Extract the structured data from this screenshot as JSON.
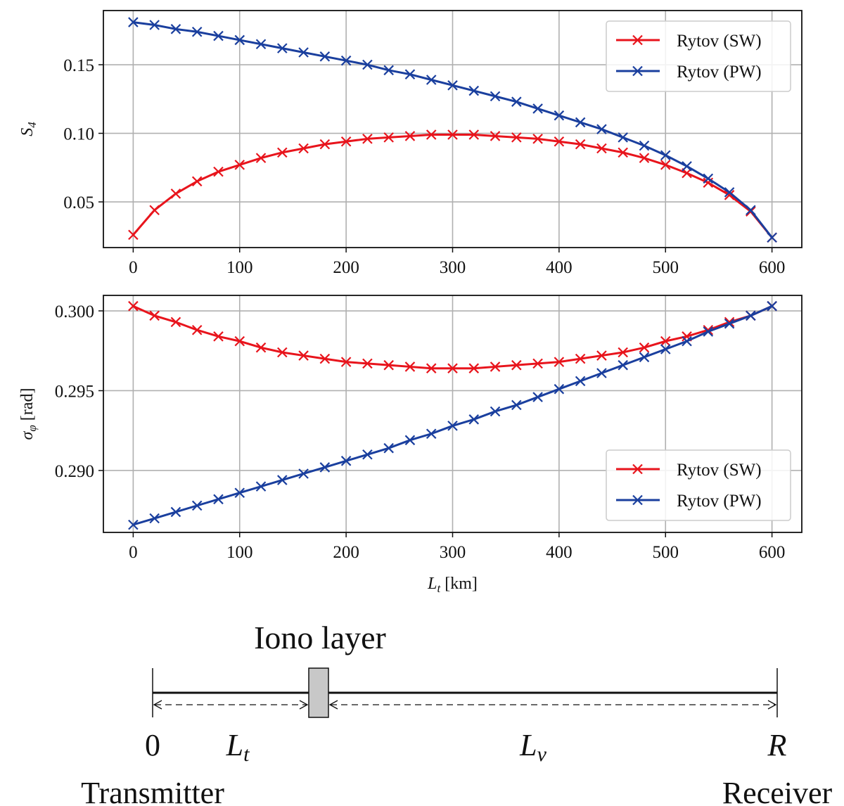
{
  "chart_data": [
    {
      "type": "line",
      "ylabel": "S",
      "ylabel_sub": "4",
      "x": [
        0,
        20,
        40,
        60,
        80,
        100,
        120,
        140,
        160,
        180,
        200,
        220,
        240,
        260,
        280,
        300,
        320,
        340,
        360,
        380,
        400,
        420,
        440,
        460,
        480,
        500,
        520,
        540,
        560,
        580,
        600
      ],
      "xlim": [
        -28,
        628
      ],
      "ylim": [
        0.0167,
        0.1895
      ],
      "xticks": [
        "0",
        "100",
        "200",
        "300",
        "400",
        "500",
        "600"
      ],
      "xtick_values": [
        0,
        100,
        200,
        300,
        400,
        500,
        600
      ],
      "yticks": [
        "0.05",
        "0.10",
        "0.15"
      ],
      "ytick_values": [
        0.05,
        0.1,
        0.15
      ],
      "grid": true,
      "legend": "top-right",
      "series": [
        {
          "name": "Rytov (SW)",
          "color": "#e8141c",
          "marker": "x",
          "values": [
            0.026,
            0.044,
            0.056,
            0.065,
            0.072,
            0.077,
            0.082,
            0.086,
            0.089,
            0.092,
            0.094,
            0.096,
            0.097,
            0.098,
            0.099,
            0.099,
            0.099,
            0.098,
            0.097,
            0.096,
            0.094,
            0.092,
            0.089,
            0.086,
            0.082,
            0.077,
            0.071,
            0.064,
            0.055,
            0.043,
            0.024
          ]
        },
        {
          "name": "Rytov (PW)",
          "color": "#1a3f9e",
          "marker": "x",
          "values": [
            0.181,
            0.179,
            0.176,
            0.174,
            0.171,
            0.168,
            0.165,
            0.162,
            0.159,
            0.156,
            0.153,
            0.15,
            0.146,
            0.143,
            0.139,
            0.135,
            0.131,
            0.127,
            0.123,
            0.118,
            0.113,
            0.108,
            0.103,
            0.097,
            0.091,
            0.084,
            0.076,
            0.067,
            0.057,
            0.044,
            0.024
          ]
        }
      ]
    },
    {
      "type": "line",
      "ylabel": "σ",
      "ylabel_sub": "φ",
      "ylabel_unit": " [rad]",
      "xlabel": "L",
      "xlabel_sub": "t",
      "xlabel_unit": " [km]",
      "x": [
        0,
        20,
        40,
        60,
        80,
        100,
        120,
        140,
        160,
        180,
        200,
        220,
        240,
        260,
        280,
        300,
        320,
        340,
        360,
        380,
        400,
        420,
        440,
        460,
        480,
        500,
        520,
        540,
        560,
        580,
        600
      ],
      "xlim": [
        -28,
        628
      ],
      "ylim": [
        0.28612,
        0.30097
      ],
      "xticks": [
        "0",
        "100",
        "200",
        "300",
        "400",
        "500",
        "600"
      ],
      "xtick_values": [
        0,
        100,
        200,
        300,
        400,
        500,
        600
      ],
      "yticks": [
        "0.290",
        "0.295",
        "0.300"
      ],
      "ytick_values": [
        0.29,
        0.295,
        0.3
      ],
      "grid": true,
      "legend": "lower-right",
      "series": [
        {
          "name": "Rytov (SW)",
          "color": "#e8141c",
          "marker": "x",
          "values": [
            0.3003,
            0.2997,
            0.2993,
            0.2988,
            0.2984,
            0.2981,
            0.2977,
            0.2974,
            0.2972,
            0.297,
            0.2968,
            0.2967,
            0.2966,
            0.2965,
            0.2964,
            0.2964,
            0.2964,
            0.2965,
            0.2966,
            0.2967,
            0.2968,
            0.297,
            0.2972,
            0.2974,
            0.2977,
            0.2981,
            0.2984,
            0.2988,
            0.2993,
            0.2997,
            0.3003
          ]
        },
        {
          "name": "Rytov (PW)",
          "color": "#1a3f9e",
          "marker": "x",
          "values": [
            0.2866,
            0.287,
            0.2874,
            0.2878,
            0.2882,
            0.2886,
            0.289,
            0.2894,
            0.2898,
            0.2902,
            0.2906,
            0.291,
            0.2914,
            0.2919,
            0.2923,
            0.2928,
            0.2932,
            0.2937,
            0.2941,
            0.2946,
            0.2951,
            0.2956,
            0.2961,
            0.2966,
            0.2971,
            0.2976,
            0.2981,
            0.2987,
            0.2992,
            0.2997,
            0.3003
          ]
        }
      ]
    }
  ],
  "diagram": {
    "layer_label": "Iono layer",
    "origin_label": "0",
    "lt_label": "L",
    "lt_sub": "t",
    "lv_label": "L",
    "lv_sub": "v",
    "r_label": "R",
    "transmitter_label": "Transmitter",
    "receiver_label": "Receiver",
    "layer_color": "#c8c8c8"
  }
}
